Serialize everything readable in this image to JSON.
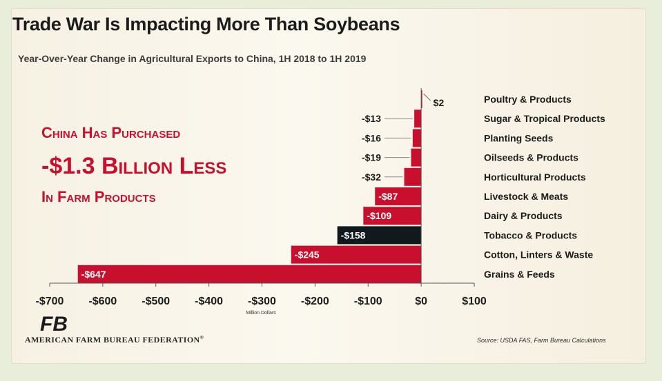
{
  "title": "Trade War Is Impacting More Than Soybeans",
  "subtitle": "Year-Over-Year Change in Agricultural Exports to China, 1H 2018 to 1H 2019",
  "callout": {
    "line1": "China Has Purchased",
    "line2": "-$1.3 Billion Less",
    "line3": "In Farm Products"
  },
  "footer": {
    "organization": "AMERICAN FARM BUREAU FEDERATION",
    "registered_mark": "®",
    "logo_text": "FB",
    "source": "Source: USDA FAS, Farm Bureau Calculations"
  },
  "colors": {
    "bar": "#c8102e",
    "highlight_bar": "#11191c",
    "text": "#1b1b1b"
  },
  "chart_data": {
    "type": "bar",
    "orientation": "horizontal",
    "categories": [
      "Poultry & Products",
      "Sugar & Tropical Products",
      "Planting Seeds",
      "Oilseeds & Products",
      "Horticultural Products",
      "Livestock & Meats",
      "Dairy & Products",
      "Tobacco & Products",
      "Cotton, Linters & Waste",
      "Grains & Feeds"
    ],
    "values": [
      2,
      -13,
      -16,
      -19,
      -32,
      -87,
      -109,
      -158,
      -245,
      -647
    ],
    "labels": [
      "$2",
      "-$13",
      "-$16",
      "-$19",
      "-$32",
      "-$87",
      "-$109",
      "-$158",
      "-$245",
      "-$647"
    ],
    "highlight": "Tobacco & Products",
    "xlabel": "Million Dollars",
    "xlim": [
      -700,
      100
    ],
    "xticks": [
      -700,
      -600,
      -500,
      -400,
      -300,
      -200,
      -100,
      0,
      100
    ],
    "xtick_labels": [
      "-$700",
      "-$600",
      "-$500",
      "-$400",
      "-$300",
      "-$200",
      "-$100",
      "$0",
      "$100"
    ],
    "grid": false,
    "legend": "none"
  }
}
